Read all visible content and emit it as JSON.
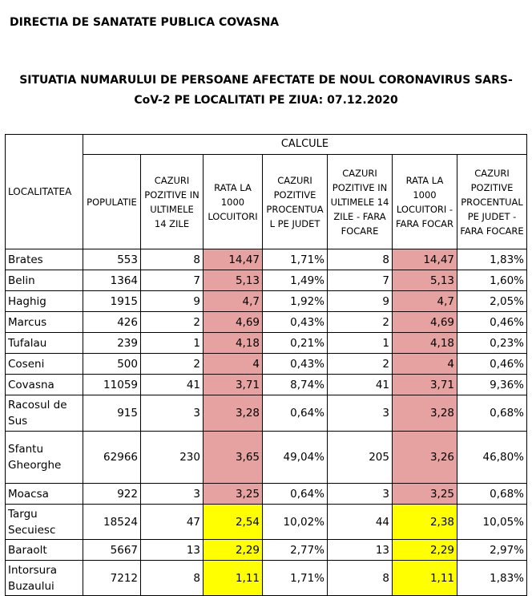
{
  "header": {
    "title": "DIRECTIA DE SANATATE PUBLICA COVASNA",
    "subtitle": [
      "SITUATIA NUMARULUI DE PERSOANE AFECTATE DE NOUL CORONAVIRUS SARS-",
      "CoV-2 PE LOCALITATI PE ZIUA: 07.12.2020"
    ]
  },
  "table": {
    "group_header": "CALCULE",
    "columns": [
      "LOCALITATEA",
      "POPULATIE",
      "CAZURI POZITIVE IN ULTIMELE 14 ZILE",
      "RATA LA 1000 LOCUITORI",
      "CAZURI POZITIVE PROCENTUA L PE JUDET",
      "CAZURI POZITIVE IN ULTIMELE 14 ZILE - FARA FOCARE",
      "RATA LA 1000 LOCUITORI - FARA FOCAR",
      "CAZURI POZITIVE PROCENTUAL PE JUDET - FARA FOCARE"
    ],
    "highlighted_columns": [
      3,
      6
    ],
    "rows": [
      {
        "cells": [
          "Brates",
          "553",
          "8",
          "14,47",
          "1,71%",
          "8",
          "14,47",
          "1,83%"
        ],
        "fill": "#e6a1a1"
      },
      {
        "cells": [
          "Belin",
          "1364",
          "7",
          "5,13",
          "1,49%",
          "7",
          "5,13",
          "1,60%"
        ],
        "fill": "#e6a1a1"
      },
      {
        "cells": [
          "Haghig",
          "1915",
          "9",
          "4,7",
          "1,92%",
          "9",
          "4,7",
          "2,05%"
        ],
        "fill": "#e6a1a1"
      },
      {
        "cells": [
          "Marcus",
          "426",
          "2",
          "4,69",
          "0,43%",
          "2",
          "4,69",
          "0,46%"
        ],
        "fill": "#e6a1a1"
      },
      {
        "cells": [
          "Tufalau",
          "239",
          "1",
          "4,18",
          "0,21%",
          "1",
          "4,18",
          "0,23%"
        ],
        "fill": "#e6a1a1"
      },
      {
        "cells": [
          "Coseni",
          "500",
          "2",
          "4",
          "0,43%",
          "2",
          "4",
          "0,46%"
        ],
        "fill": "#e6a1a1"
      },
      {
        "cells": [
          "Covasna",
          "11059",
          "41",
          "3,71",
          "8,74%",
          "41",
          "3,71",
          "9,36%"
        ],
        "fill": "#e6a1a1"
      },
      {
        "cells": [
          "Racosul de Sus",
          "915",
          "3",
          "3,28",
          "0,64%",
          "3",
          "3,28",
          "0,68%"
        ],
        "fill": "#e6a1a1"
      },
      {
        "cells": [
          "Sfantu Gheorghe",
          "62966",
          "230",
          "3,65",
          "49,04%",
          "205",
          "3,26",
          "46,80%"
        ],
        "fill": "#e6a1a1"
      },
      {
        "cells": [
          "Moacsa",
          "922",
          "3",
          "3,25",
          "0,64%",
          "3",
          "3,25",
          "0,68%"
        ],
        "fill": "#e6a1a1"
      },
      {
        "cells": [
          "Targu Secuiesc",
          "18524",
          "47",
          "2,54",
          "10,02%",
          "44",
          "2,38",
          "10,05%"
        ],
        "fill": "#ffff00"
      },
      {
        "cells": [
          "Baraolt",
          "5667",
          "13",
          "2,29",
          "2,77%",
          "13",
          "2,29",
          "2,97%"
        ],
        "fill": "#ffff00"
      },
      {
        "cells": [
          "Intorsura Buzaului",
          "7212",
          "8",
          "1,11",
          "1,71%",
          "8",
          "1,11",
          "1,83%"
        ],
        "fill": "#ffff00"
      }
    ]
  }
}
